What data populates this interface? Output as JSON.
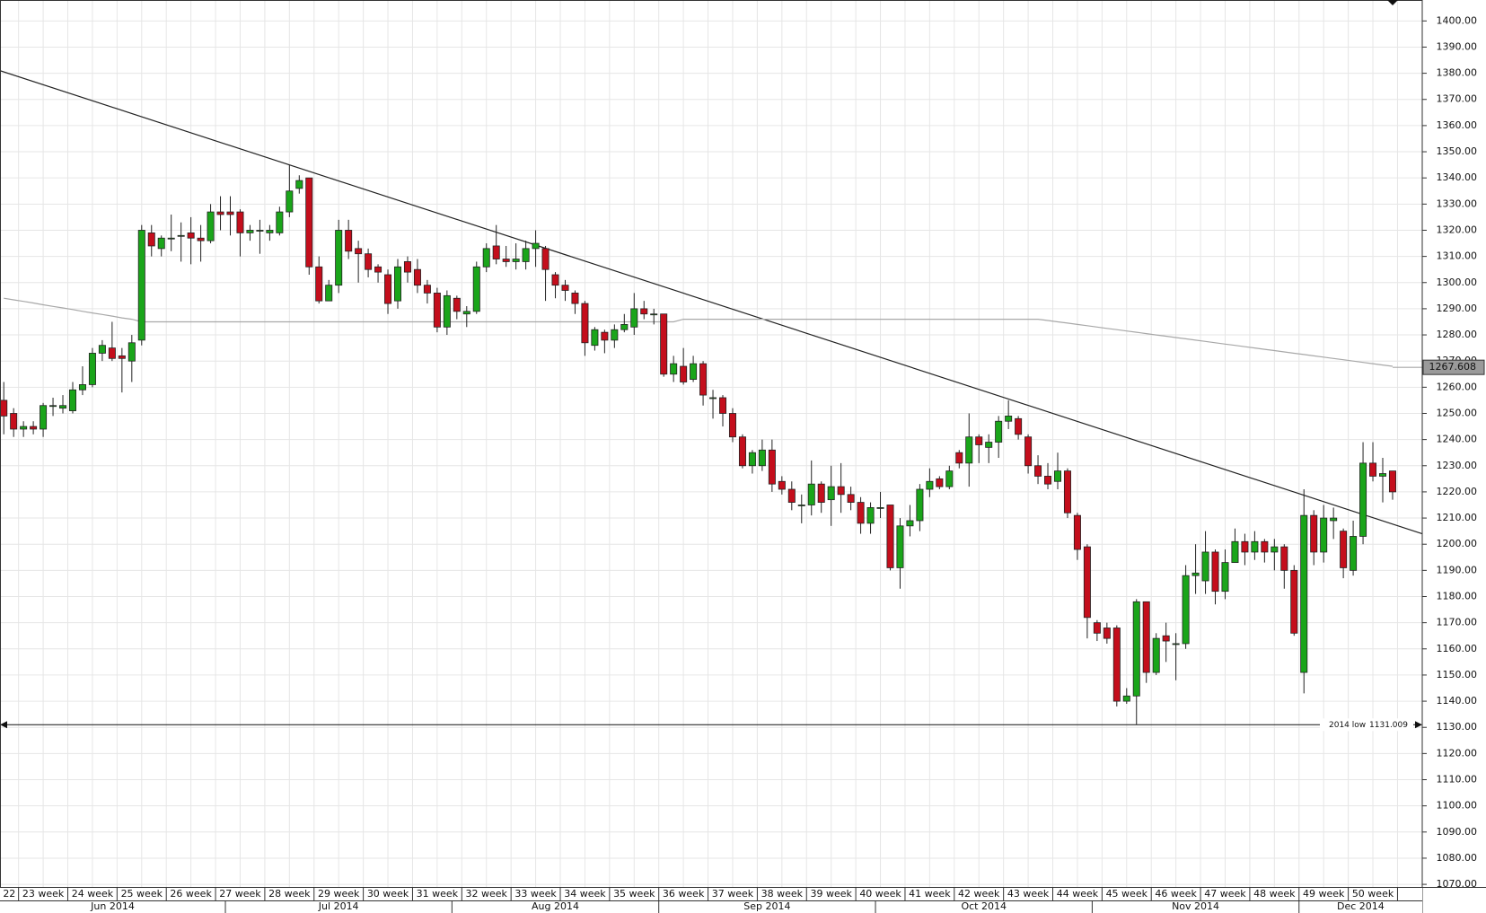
{
  "chart_data": {
    "type": "candlestick",
    "up_color": "#1aa51a",
    "down_color": "#c40e1c",
    "grid": true,
    "ylim": [
      1069,
      1408
    ],
    "yticks": [
      {
        "value": 1070,
        "label": "1070.00"
      },
      {
        "value": 1080,
        "label": "1080.00"
      },
      {
        "value": 1090,
        "label": "1090.00"
      },
      {
        "value": 1100,
        "label": "1100.00"
      },
      {
        "value": 1110,
        "label": "1110.00"
      },
      {
        "value": 1120,
        "label": "1120.00"
      },
      {
        "value": 1130,
        "label": "1130.00"
      },
      {
        "value": 1140,
        "label": "1140.00"
      },
      {
        "value": 1150,
        "label": "1150.00"
      },
      {
        "value": 1160,
        "label": "1160.00"
      },
      {
        "value": 1170,
        "label": "1170.00"
      },
      {
        "value": 1180,
        "label": "1180.00"
      },
      {
        "value": 1190,
        "label": "1190.00"
      },
      {
        "value": 1200,
        "label": "1200.00"
      },
      {
        "value": 1210,
        "label": "1210.00"
      },
      {
        "value": 1220,
        "label": "1220.00"
      },
      {
        "value": 1230,
        "label": "1230.00"
      },
      {
        "value": 1240,
        "label": "1240.00"
      },
      {
        "value": 1250,
        "label": "1250.00"
      },
      {
        "value": 1260,
        "label": "1260.00"
      },
      {
        "value": 1270,
        "label": "1270.00"
      },
      {
        "value": 1280,
        "label": "1280.00"
      },
      {
        "value": 1290,
        "label": "1290.00"
      },
      {
        "value": 1300,
        "label": "1300.00"
      },
      {
        "value": 1310,
        "label": "1310.00"
      },
      {
        "value": 1320,
        "label": "1320.00"
      },
      {
        "value": 1330,
        "label": "1330.00"
      },
      {
        "value": 1340,
        "label": "1340.00"
      },
      {
        "value": 1350,
        "label": "1350.00"
      },
      {
        "value": 1360,
        "label": "1360.00"
      },
      {
        "value": 1370,
        "label": "1370.00"
      },
      {
        "value": 1380,
        "label": "1380.00"
      },
      {
        "value": 1390,
        "label": "1390.00"
      },
      {
        "value": 1400,
        "label": "1400.00"
      }
    ],
    "open": [
      1255,
      1250,
      1244,
      1245,
      1244,
      1253,
      1252,
      1251,
      1259,
      1261,
      1273,
      1275,
      1272,
      1270,
      1278,
      1319,
      1313,
      1317,
      1318,
      1319,
      1317,
      1316,
      1327,
      1327,
      1327,
      1319,
      1320,
      1319,
      1319,
      1327,
      1336,
      1340,
      1306,
      1293,
      1299,
      1320,
      1313,
      1311,
      1306,
      1303,
      1293,
      1308,
      1305,
      1299,
      1296,
      1283,
      1294,
      1288,
      1289,
      1306,
      1314,
      1309,
      1308,
      1308,
      1313,
      1313,
      1303,
      1299,
      1296,
      1292,
      1276,
      1281,
      1278,
      1282,
      1283,
      1290,
      1288,
      1288,
      1265,
      1268,
      1263,
      1269,
      1256,
      1256,
      1250,
      1241,
      1230,
      1230,
      1236,
      1224,
      1221,
      1215,
      1215,
      1223,
      1217,
      1222,
      1219,
      1216,
      1208,
      1214,
      1215,
      1191,
      1207,
      1209,
      1221,
      1225,
      1222,
      1235,
      1231,
      1241,
      1237,
      1239,
      1247,
      1248,
      1241,
      1230,
      1226,
      1224,
      1228,
      1211,
      1199,
      1170,
      1168,
      1168,
      1140,
      1142,
      1178,
      1151,
      1165,
      1162,
      1162,
      1188,
      1186,
      1197,
      1182,
      1193,
      1201,
      1197,
      1201,
      1197,
      1199,
      1190,
      1151,
      1211,
      1197,
      1209,
      1205,
      1190,
      1203,
      1231,
      1226,
      1228
    ],
    "high": [
      1262,
      1252,
      1247,
      1247,
      1254,
      1256,
      1257,
      1262,
      1268,
      1275,
      1278,
      1285,
      1275,
      1280,
      1322,
      1322,
      1318,
      1326,
      1323,
      1325,
      1322,
      1330,
      1333,
      1333,
      1328,
      1322,
      1324,
      1322,
      1329,
      1345,
      1341,
      1340,
      1310,
      1301,
      1324,
      1324,
      1316,
      1313,
      1307,
      1305,
      1309,
      1310,
      1309,
      1301,
      1298,
      1297,
      1295,
      1291,
      1308,
      1315,
      1322,
      1314,
      1315,
      1316,
      1320,
      1314,
      1304,
      1301,
      1297,
      1293,
      1283,
      1282,
      1284,
      1288,
      1296,
      1293,
      1290,
      1288,
      1272,
      1275,
      1272,
      1270,
      1259,
      1257,
      1252,
      1242,
      1236,
      1240,
      1240,
      1226,
      1224,
      1219,
      1232,
      1224,
      1230,
      1231,
      1222,
      1218,
      1216,
      1220,
      1215,
      1210,
      1215,
      1223,
      1229,
      1226,
      1230,
      1236,
      1250,
      1242,
      1242,
      1249,
      1255,
      1249,
      1242,
      1234,
      1231,
      1235,
      1229,
      1212,
      1200,
      1171,
      1170,
      1169,
      1145,
      1179,
      1178,
      1166,
      1170,
      1166,
      1192,
      1200,
      1205,
      1198,
      1198,
      1206,
      1204,
      1205,
      1202,
      1202,
      1200,
      1192,
      1221,
      1213,
      1215,
      1214,
      1206,
      1209,
      1239,
      1239,
      1233,
      1228
    ],
    "low": [
      1242,
      1241,
      1241,
      1242,
      1241,
      1249,
      1250,
      1250,
      1257,
      1260,
      1270,
      1270,
      1258,
      1262,
      1276,
      1310,
      1310,
      1312,
      1308,
      1307,
      1308,
      1315,
      1320,
      1318,
      1310,
      1316,
      1311,
      1316,
      1318,
      1325,
      1334,
      1303,
      1292,
      1293,
      1296,
      1309,
      1300,
      1302,
      1300,
      1288,
      1290,
      1300,
      1296,
      1292,
      1281,
      1280,
      1286,
      1283,
      1288,
      1304,
      1307,
      1306,
      1305,
      1305,
      1306,
      1293,
      1294,
      1293,
      1288,
      1272,
      1274,
      1273,
      1275,
      1281,
      1280,
      1286,
      1284,
      1264,
      1262,
      1261,
      1262,
      1253,
      1248,
      1245,
      1239,
      1229,
      1227,
      1228,
      1220,
      1219,
      1213,
      1208,
      1211,
      1212,
      1207,
      1212,
      1213,
      1204,
      1204,
      1210,
      1190,
      1183,
      1203,
      1205,
      1218,
      1221,
      1221,
      1229,
      1222,
      1231,
      1231,
      1233,
      1244,
      1240,
      1227,
      1223,
      1221,
      1221,
      1210,
      1194,
      1164,
      1163,
      1162,
      1138,
      1139,
      1131,
      1147,
      1150,
      1155,
      1148,
      1160,
      1181,
      1181,
      1177,
      1179,
      1193,
      1192,
      1194,
      1193,
      1190,
      1183,
      1165,
      1143,
      1192,
      1193,
      1202,
      1187,
      1188,
      1200,
      1224,
      1216,
      1217
    ],
    "close": [
      1249,
      1244,
      1245,
      1244,
      1253,
      1253,
      1253,
      1259,
      1261,
      1273,
      1276,
      1271,
      1271,
      1277,
      1320,
      1314,
      1317,
      1317,
      1318,
      1317,
      1316,
      1327,
      1326,
      1326,
      1319,
      1320,
      1320,
      1320,
      1327,
      1335,
      1339,
      1306,
      1293,
      1299,
      1320,
      1312,
      1311,
      1305,
      1304,
      1292,
      1306,
      1304,
      1299,
      1296,
      1283,
      1295,
      1289,
      1289,
      1306,
      1313,
      1309,
      1308,
      1309,
      1313,
      1315,
      1305,
      1299,
      1297,
      1292,
      1277,
      1282,
      1278,
      1282,
      1284,
      1290,
      1288,
      1288,
      1265,
      1269,
      1262,
      1269,
      1257,
      1256,
      1250,
      1241,
      1230,
      1235,
      1236,
      1223,
      1221,
      1216,
      1215,
      1223,
      1216,
      1222,
      1219,
      1216,
      1208,
      1214,
      1214,
      1191,
      1207,
      1209,
      1221,
      1224,
      1222,
      1228,
      1231,
      1241,
      1238,
      1239,
      1247,
      1249,
      1242,
      1230,
      1226,
      1223,
      1228,
      1212,
      1198,
      1172,
      1166,
      1164,
      1140,
      1142,
      1178,
      1151,
      1164,
      1163,
      1162,
      1188,
      1189,
      1197,
      1182,
      1193,
      1201,
      1197,
      1201,
      1197,
      1199,
      1190,
      1166,
      1211,
      1197,
      1210,
      1210,
      1191,
      1203,
      1231,
      1226,
      1227,
      1220
    ],
    "moving_average": {
      "color": "#a8a8a8",
      "values": [
        1294,
        1293.4,
        1292.8,
        1292.2,
        1291.5,
        1290.9,
        1290.3,
        1289.7,
        1289,
        1288.4,
        1287.8,
        1287.2,
        1286.5,
        1286,
        1285,
        1285,
        1285,
        1285,
        1285,
        1285,
        1285,
        1285,
        1285,
        1285,
        1285,
        1285,
        1285,
        1285,
        1285,
        1285,
        1285,
        1285,
        1285,
        1285,
        1285,
        1285,
        1285,
        1285,
        1285,
        1285,
        1285,
        1285,
        1285,
        1285,
        1285,
        1285,
        1285,
        1285,
        1285,
        1285,
        1285,
        1285,
        1285,
        1285,
        1285,
        1285,
        1285,
        1285,
        1285,
        1285,
        1285,
        1285,
        1285,
        1285,
        1285,
        1285,
        1285,
        1285,
        1285,
        1286,
        1286,
        1286,
        1286,
        1286,
        1286,
        1286,
        1286,
        1286,
        1286,
        1286,
        1286,
        1286,
        1286,
        1286,
        1286,
        1286,
        1286,
        1286,
        1286,
        1286,
        1286,
        1286,
        1286,
        1286,
        1286,
        1286,
        1286,
        1286,
        1286,
        1286,
        1286,
        1286,
        1286,
        1286,
        1286,
        1286,
        1285.5,
        1285,
        1284.5,
        1284,
        1283.5,
        1283,
        1282.5,
        1282,
        1281.5,
        1281,
        1280.5,
        1280,
        1279.5,
        1279,
        1278.5,
        1278,
        1277.5,
        1277,
        1276.5,
        1276,
        1275.5,
        1275,
        1274.5,
        1274,
        1273.5,
        1273,
        1272.5,
        1272,
        1271.5,
        1271,
        1270.5,
        1270,
        1269.5,
        1269,
        1268.5,
        1268
      ]
    },
    "current_value": 1267.608,
    "trendline": {
      "color": "#222222",
      "values": [
        1381,
        1204
      ]
    },
    "low_line": {
      "label": "2014 low",
      "value": 1131.009
    },
    "week_labels": [
      "22",
      "23 week",
      "24 week",
      "25 week",
      "26 week",
      "27 week",
      "28 week",
      "29 week",
      "30 week",
      "31 week",
      "32 week",
      "33 week",
      "34 week",
      "35 week",
      "36 week",
      "37 week",
      "38 week",
      "39 week",
      "40 week",
      "41 week",
      "42 week",
      "43 week",
      "44 week",
      "45 week",
      "46 week",
      "47 week",
      "48 week",
      "49 week",
      "50 week"
    ],
    "month_labels": [
      "Jun 2014",
      "Jul 2014",
      "Aug 2014",
      "Sep 2014",
      "Oct 2014",
      "Nov 2014",
      "Dec 2014"
    ]
  }
}
